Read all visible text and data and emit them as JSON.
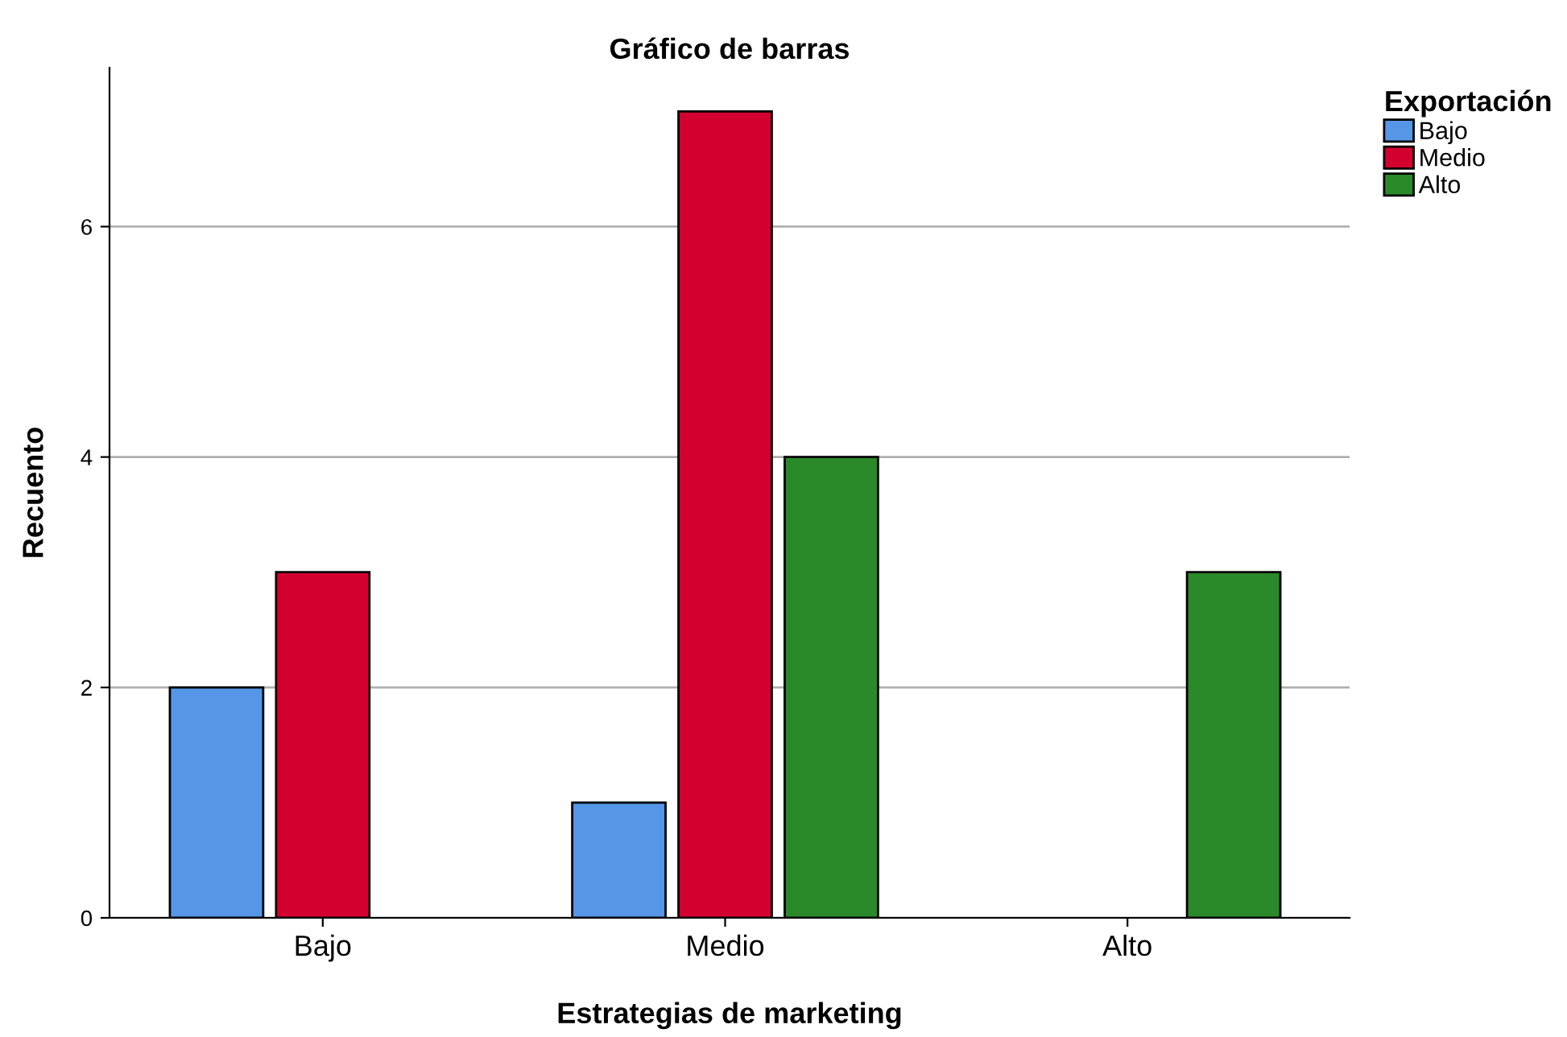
{
  "chart_data": {
    "type": "bar",
    "title": "Gráfico de barras",
    "xlabel": "Estrategias de marketing",
    "ylabel": "Recuento",
    "legend_title": "Exportación",
    "categories": [
      "Bajo",
      "Medio",
      "Alto"
    ],
    "series": [
      {
        "name": "Bajo",
        "color": "#5596e6",
        "values": [
          2,
          1,
          null
        ]
      },
      {
        "name": "Medio",
        "color": "#d3002f",
        "values": [
          3,
          7,
          null
        ]
      },
      {
        "name": "Alto",
        "color": "#2a8a2a",
        "values": [
          null,
          4,
          3
        ]
      }
    ],
    "ylim": [
      0,
      7.38
    ],
    "yticks": [
      0,
      2,
      4,
      6
    ],
    "grid": "y",
    "legend": "top right"
  }
}
